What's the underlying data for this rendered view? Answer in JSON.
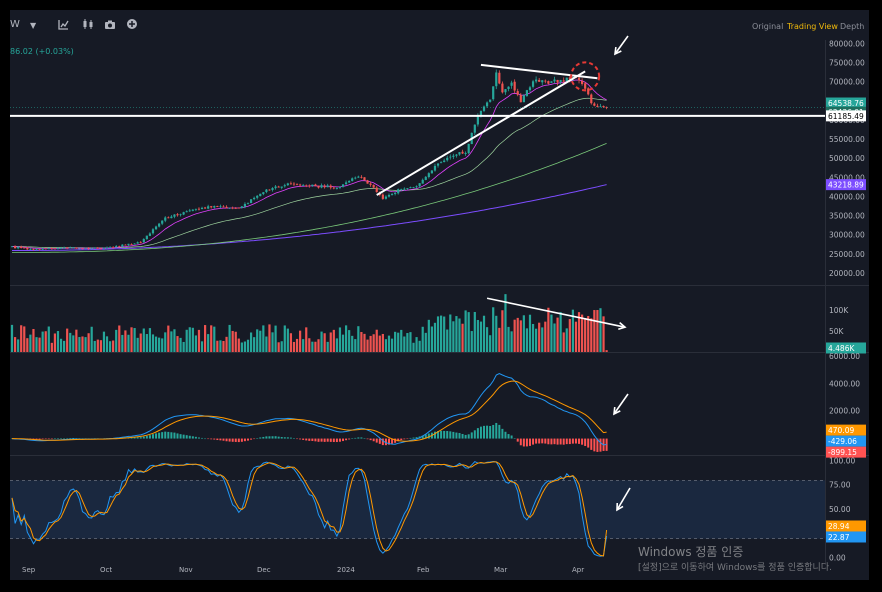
{
  "toolbar": {
    "interval": "W",
    "tabs": [
      "Original",
      "Trading View",
      "Depth"
    ],
    "active_tab": "Trading View",
    "change_text": "86.02 (+0.03%)",
    "icons": [
      "chevron-down-icon",
      "indicators-icon",
      "candle-type-icon",
      "camera-icon",
      "add-icon"
    ]
  },
  "colors": {
    "background": "#161a25",
    "up": "#26a69a",
    "down": "#ef5350",
    "ma_fast": "#e040fb",
    "ma_mid": "#7ac97a",
    "ma_slow": "#7c4dff",
    "macd": "#2196f3",
    "signal": "#ff9800",
    "stoch_k": "#2196f3",
    "stoch_d": "#ff9800",
    "annotation": "#ffffff",
    "circle": "#e53935"
  },
  "chart_data": [
    {
      "type": "candlestick",
      "name": "price",
      "x_labels": [
        "Sep",
        "Oct",
        "Nov",
        "Dec",
        "2024",
        "Feb",
        "Mar",
        "Apr"
      ],
      "y_ticks": [
        "80000.00",
        "75000.00",
        "70000.00",
        "65000.00",
        "60000.00",
        "55000.00",
        "50000.00",
        "45000.00",
        "40000.00",
        "35000.00",
        "30000.00",
        "25000.00",
        "20000.00"
      ],
      "ylim": [
        17000,
        81000
      ],
      "keypoints": [
        [
          0,
          27000
        ],
        [
          8,
          26200
        ],
        [
          18,
          26800
        ],
        [
          28,
          26500
        ],
        [
          35,
          27200
        ],
        [
          42,
          28200
        ],
        [
          50,
          34500
        ],
        [
          58,
          36500
        ],
        [
          66,
          37500
        ],
        [
          74,
          37000
        ],
        [
          82,
          41500
        ],
        [
          90,
          43500
        ],
        [
          98,
          43000
        ],
        [
          106,
          42300
        ],
        [
          113,
          45500
        ],
        [
          118,
          42500
        ],
        [
          121,
          39500
        ],
        [
          127,
          42200
        ],
        [
          132,
          42800
        ],
        [
          138,
          48000
        ],
        [
          144,
          50800
        ],
        [
          148,
          51800
        ],
        [
          152,
          61500
        ],
        [
          156,
          66000
        ],
        [
          158,
          72500
        ],
        [
          160,
          67000
        ],
        [
          163,
          69500
        ],
        [
          166,
          65000
        ],
        [
          170,
          70500
        ],
        [
          175,
          70000
        ],
        [
          180,
          70500
        ],
        [
          184,
          71000
        ],
        [
          187,
          68500
        ],
        [
          189,
          64500
        ],
        [
          191,
          63400
        ]
      ],
      "ma_fast_last": 64538.76,
      "ma_mid_last": 54000,
      "ma_slow_last": 43218.89,
      "labels": {
        "ma_fast": "64538.76",
        "last_price": "63436.01",
        "line_level": "61185.49",
        "ma_slow": "43218.89"
      },
      "horizontal_line": 61185.49,
      "trend_lines": [
        {
          "from": [
            119,
            40500
          ],
          "to": [
            187,
            72800
          ]
        },
        {
          "from": [
            153,
            74500
          ],
          "to": [
            191,
            71000
          ]
        }
      ],
      "circle_at": [
        187,
        71500
      ]
    },
    {
      "type": "bar",
      "name": "volume",
      "y_ticks": [
        "100K",
        "50K"
      ],
      "ylim": [
        0,
        150000
      ],
      "last_label": "4.486K",
      "trend_line": {
        "from": [
          155,
          130000
        ],
        "to": [
          193,
          60000
        ]
      }
    },
    {
      "type": "line",
      "name": "macd",
      "y_ticks": [
        "6000.00",
        "4000.00",
        "2000.00"
      ],
      "ylim": [
        -1200,
        6100
      ],
      "labels": {
        "signal": "470.09",
        "macd": "-429.06",
        "histogram": "-899.15"
      }
    },
    {
      "type": "line",
      "name": "stochastic",
      "y_ticks": [
        "100.00",
        "75.00",
        "50.00",
        "25.00",
        "0.00"
      ],
      "ylim": [
        -5,
        105
      ],
      "bands": [
        20,
        80
      ],
      "labels": {
        "d": "28.94",
        "k": "22.87"
      }
    }
  ],
  "watermark": {
    "title": "Windows 정품 인증",
    "subtitle": "[설정]으로 이동하여 Windows를 정품 인증합니다."
  }
}
